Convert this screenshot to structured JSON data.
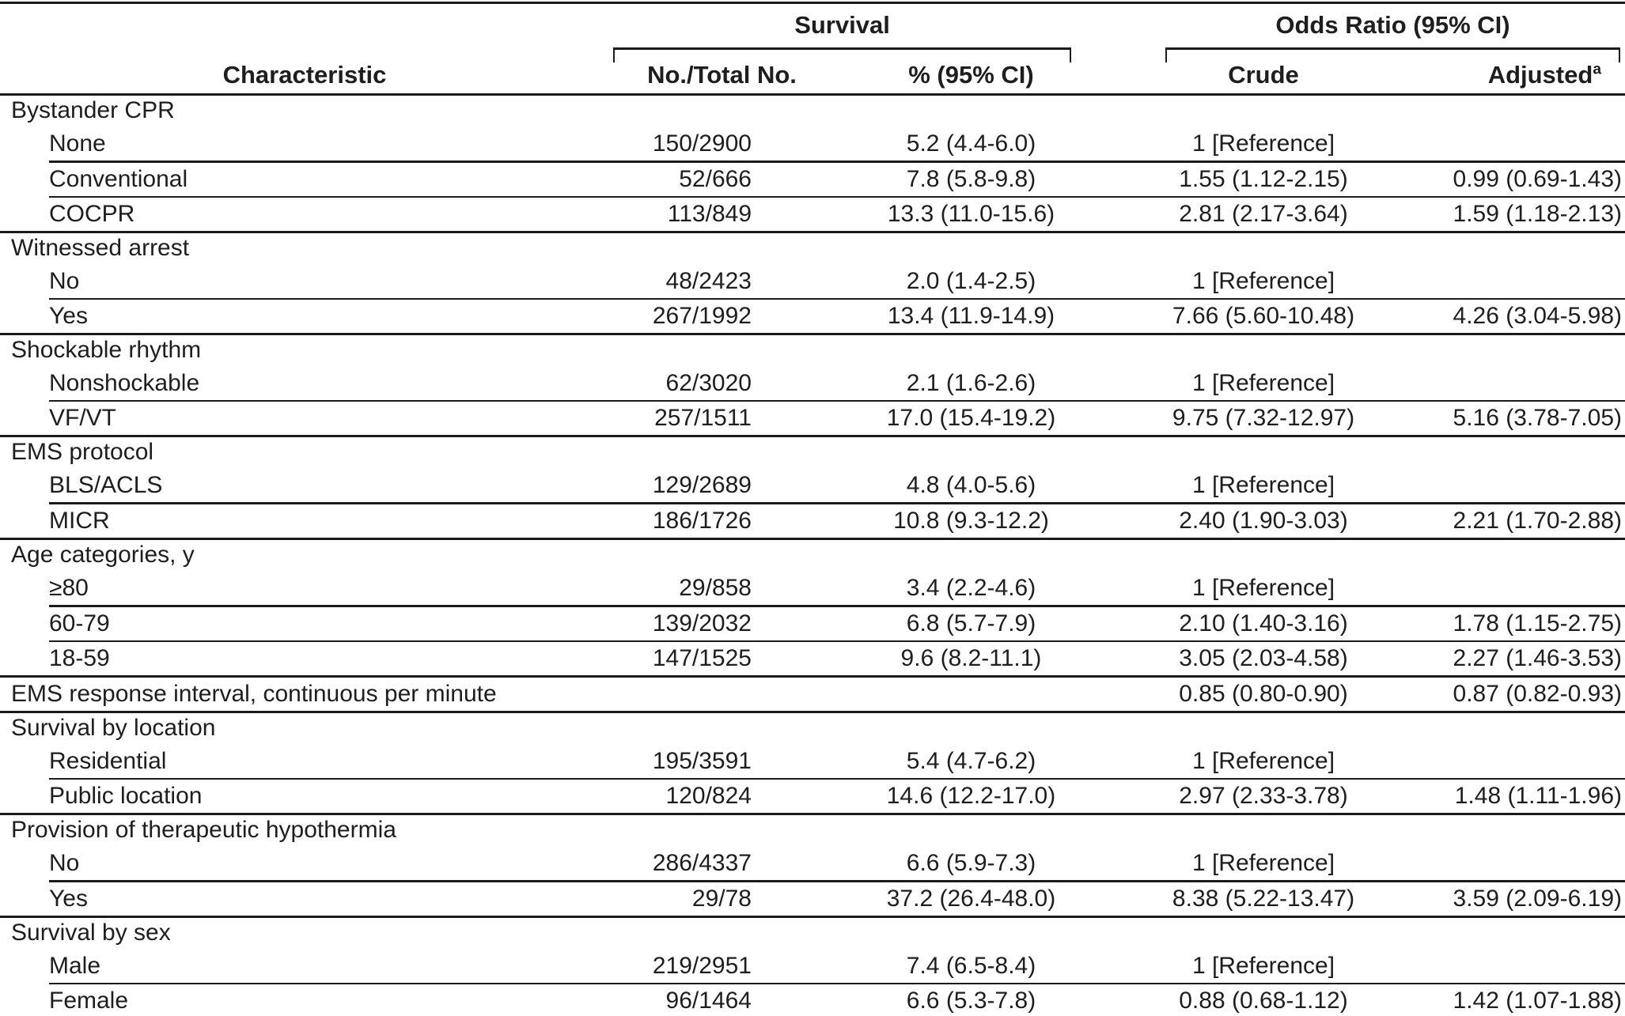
{
  "table": {
    "header": {
      "characteristic": "Characteristic",
      "survival_group": "Survival",
      "odds_ratio_group": "Odds Ratio (95% CI)",
      "col_no_total": "No./Total No.",
      "col_pct": "% (95% CI)",
      "col_crude": "Crude",
      "col_adjusted": "Adjusted",
      "adjusted_superscript": "a"
    },
    "rows": [
      {
        "type": "group",
        "label": "Bystander CPR"
      },
      {
        "type": "sub",
        "label": "None",
        "no_total": "150/2900",
        "pct_ci": "5.2 (4.4-6.0)",
        "crude": "1 [Reference]",
        "adjusted": ""
      },
      {
        "type": "sub",
        "label": "Conventional",
        "no_total": "52/666",
        "pct_ci": "7.8 (5.8-9.8)",
        "crude": "1.55 (1.12-2.15)",
        "adjusted": "0.99 (0.69-1.43)"
      },
      {
        "type": "sub",
        "label": "COCPR",
        "no_total": "113/849",
        "pct_ci": "13.3 (11.0-15.6)",
        "crude": "2.81 (2.17-3.64)",
        "adjusted": "1.59 (1.18-2.13)"
      },
      {
        "type": "group",
        "label": "Witnessed arrest"
      },
      {
        "type": "sub",
        "label": "No",
        "no_total": "48/2423",
        "pct_ci": "2.0 (1.4-2.5)",
        "crude": "1 [Reference]",
        "adjusted": ""
      },
      {
        "type": "sub",
        "label": "Yes",
        "no_total": "267/1992",
        "pct_ci": "13.4 (11.9-14.9)",
        "crude": "7.66 (5.60-10.48)",
        "adjusted": "4.26 (3.04-5.98)"
      },
      {
        "type": "group",
        "label": "Shockable rhythm"
      },
      {
        "type": "sub",
        "label": "Nonshockable",
        "no_total": "62/3020",
        "pct_ci": "2.1 (1.6-2.6)",
        "crude": "1 [Reference]",
        "adjusted": ""
      },
      {
        "type": "sub",
        "label": "VF/VT",
        "no_total": "257/1511",
        "pct_ci": "17.0 (15.4-19.2)",
        "crude": "9.75 (7.32-12.97)",
        "adjusted": "5.16 (3.78-7.05)"
      },
      {
        "type": "group",
        "label": "EMS protocol"
      },
      {
        "type": "sub",
        "label": "BLS/ACLS",
        "no_total": "129/2689",
        "pct_ci": "4.8 (4.0-5.6)",
        "crude": "1 [Reference]",
        "adjusted": ""
      },
      {
        "type": "sub",
        "label": "MICR",
        "no_total": "186/1726",
        "pct_ci": "10.8 (9.3-12.2)",
        "crude": "2.40 (1.90-3.03)",
        "adjusted": "2.21 (1.70-2.88)"
      },
      {
        "type": "group",
        "label": "Age categories, y"
      },
      {
        "type": "sub",
        "label": "≥80",
        "no_total": "29/858",
        "pct_ci": "3.4 (2.2-4.6)",
        "crude": "1 [Reference]",
        "adjusted": ""
      },
      {
        "type": "sub",
        "label": "60-79",
        "no_total": "139/2032",
        "pct_ci": "6.8 (5.7-7.9)",
        "crude": "2.10 (1.40-3.16)",
        "adjusted": "1.78 (1.15-2.75)"
      },
      {
        "type": "sub",
        "label": "18-59",
        "no_total": "147/1525",
        "pct_ci": "9.6 (8.2-11.1)",
        "crude": "3.05 (2.03-4.58)",
        "adjusted": "2.27 (1.46-3.53)"
      },
      {
        "type": "single",
        "label": "EMS response interval, continuous per minute",
        "no_total": "",
        "pct_ci": "",
        "crude": "0.85 (0.80-0.90)",
        "adjusted": "0.87 (0.82-0.93)"
      },
      {
        "type": "group",
        "label": "Survival by location"
      },
      {
        "type": "sub",
        "label": "Residential",
        "no_total": "195/3591",
        "pct_ci": "5.4 (4.7-6.2)",
        "crude": "1 [Reference]",
        "adjusted": ""
      },
      {
        "type": "sub",
        "label": "Public location",
        "no_total": "120/824",
        "pct_ci": "14.6 (12.2-17.0)",
        "crude": "2.97 (2.33-3.78)",
        "adjusted": "1.48 (1.11-1.96)"
      },
      {
        "type": "group",
        "label": "Provision of therapeutic hypothermia"
      },
      {
        "type": "sub",
        "label": "No",
        "no_total": "286/4337",
        "pct_ci": "6.6 (5.9-7.3)",
        "crude": "1 [Reference]",
        "adjusted": ""
      },
      {
        "type": "sub",
        "label": "Yes",
        "no_total": "29/78",
        "pct_ci": "37.2 (26.4-48.0)",
        "crude": "8.38 (5.22-13.47)",
        "adjusted": "3.59 (2.09-6.19)"
      },
      {
        "type": "group",
        "label": "Survival by sex"
      },
      {
        "type": "sub",
        "label": "Male",
        "no_total": "219/2951",
        "pct_ci": "7.4 (6.5-8.4)",
        "crude": "1 [Reference]",
        "adjusted": ""
      },
      {
        "type": "sub",
        "label": "Female",
        "no_total": "96/1464",
        "pct_ci": "6.6 (5.3-7.8)",
        "crude": "0.88 (0.68-1.12)",
        "adjusted": "1.42 (1.07-1.88)"
      }
    ]
  }
}
